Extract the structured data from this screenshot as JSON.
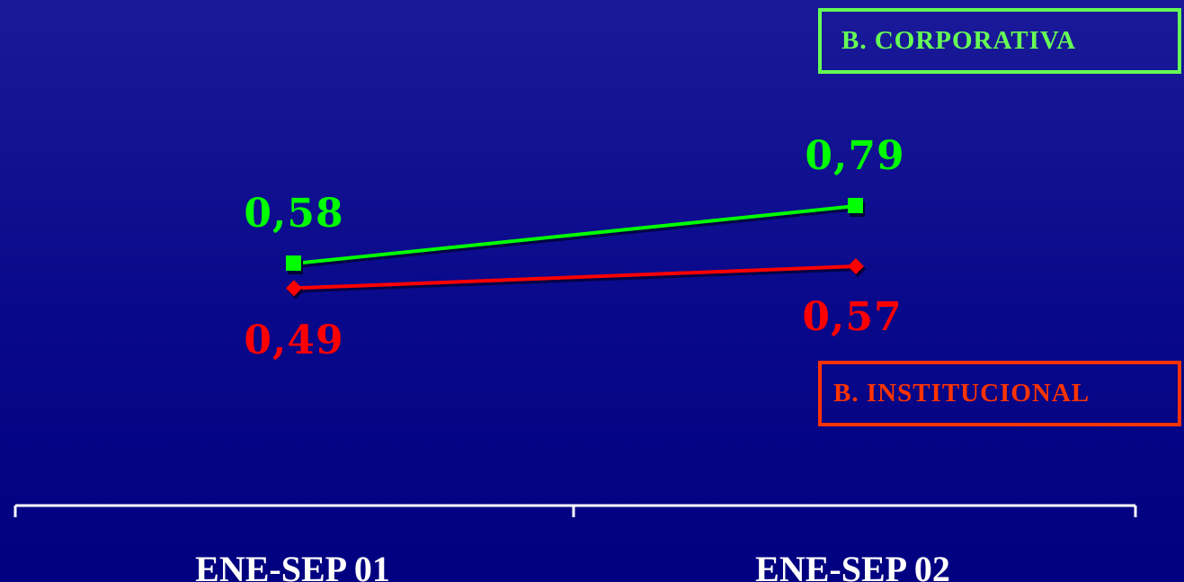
{
  "chart_data": {
    "type": "line",
    "categories": [
      "ENE-SEP 01",
      "ENE-SEP 02"
    ],
    "series": [
      {
        "name": "B. CORPORATIVA",
        "values": [
          0.58,
          0.79
        ],
        "labels": [
          "0,58",
          "0,79"
        ],
        "color": "#00ff00",
        "label_color": "#00ff00",
        "marker": "square"
      },
      {
        "name": "B. INSTITUCIONAL",
        "values": [
          0.49,
          0.57
        ],
        "labels": [
          "0,49",
          "0,57"
        ],
        "color": "#ff0000",
        "label_color": "#ff0000",
        "marker": "diamond"
      }
    ],
    "title": "",
    "xlabel": "",
    "ylabel": "",
    "legend": "right",
    "grid": false
  },
  "colors": {
    "background": "#0a0a8f",
    "axis": "#ffffff",
    "corporativa_legend": "#66ff55",
    "institucional_legend": "#ff3300"
  }
}
